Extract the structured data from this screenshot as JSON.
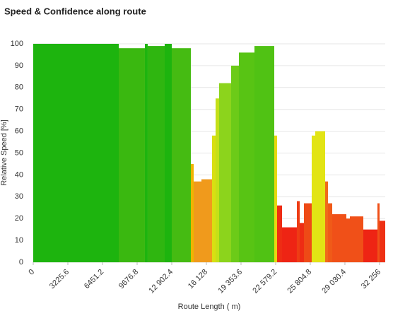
{
  "chart_data": {
    "type": "histogram",
    "title": "Speed & Confidence along route",
    "xlabel": "Route Length ( m)",
    "ylabel": "Relative Speed [%]",
    "bins": [
      0,
      7966,
      10400,
      10663,
      12245,
      12903,
      14680,
      14944,
      15668,
      16656,
      16985,
      17314,
      18433,
      19157,
      20606,
      22449,
      22712,
      23173,
      24555,
      24819,
      25214,
      25938,
      26267,
      27189,
      27452,
      27847,
      29164,
      29493,
      30744,
      32060,
      32258,
      32785
    ],
    "values": [
      100,
      98,
      100,
      99,
      100,
      98,
      45,
      37,
      38,
      58,
      75,
      82,
      90,
      96,
      99,
      58,
      26,
      16,
      28,
      18,
      27,
      58,
      60,
      37,
      27,
      22,
      20,
      21,
      15,
      27,
      19
    ],
    "colors": [
      "#1db40e",
      "#3ab810",
      "#1db40e",
      "#2fb610",
      "#1db40e",
      "#45bb12",
      "#f0b400",
      "#f09a1c",
      "#f09a1c",
      "#d8df12",
      "#c4e018",
      "#8cd41c",
      "#6ccb18",
      "#58c414",
      "#50c214",
      "#e6d810",
      "#ee2c14",
      "#ee2414",
      "#ee3c14",
      "#ee2c14",
      "#ee4a16",
      "#e2e414",
      "#e2e414",
      "#f06a1a",
      "#f05a18",
      "#f05018",
      "#f05018",
      "#f05018",
      "#ee2414",
      "#f05018",
      "#ee3014"
    ],
    "xlim": [
      0,
      32785
    ],
    "ylim": [
      0,
      100
    ],
    "xticks": [
      0,
      {
        "value": 3225.6,
        "label": "3225.6"
      },
      {
        "value": 6451.2,
        "label": "6451.2"
      },
      {
        "value": 9676.8,
        "label": "9676.8"
      },
      {
        "value": 12902.4,
        "label": "12 902.4"
      },
      {
        "value": 16128,
        "label": "16 128"
      },
      {
        "value": 19353.6,
        "label": "19 353.6"
      },
      {
        "value": 22579.2,
        "label": "22 579.2"
      },
      {
        "value": 25804.8,
        "label": "25 804.8"
      },
      {
        "value": 29030.4,
        "label": "29 030.4"
      },
      {
        "value": 32256,
        "label": "32 256"
      }
    ],
    "yticks": [
      0,
      10,
      20,
      30,
      40,
      50,
      60,
      70,
      80,
      90,
      100
    ],
    "grid": true
  }
}
